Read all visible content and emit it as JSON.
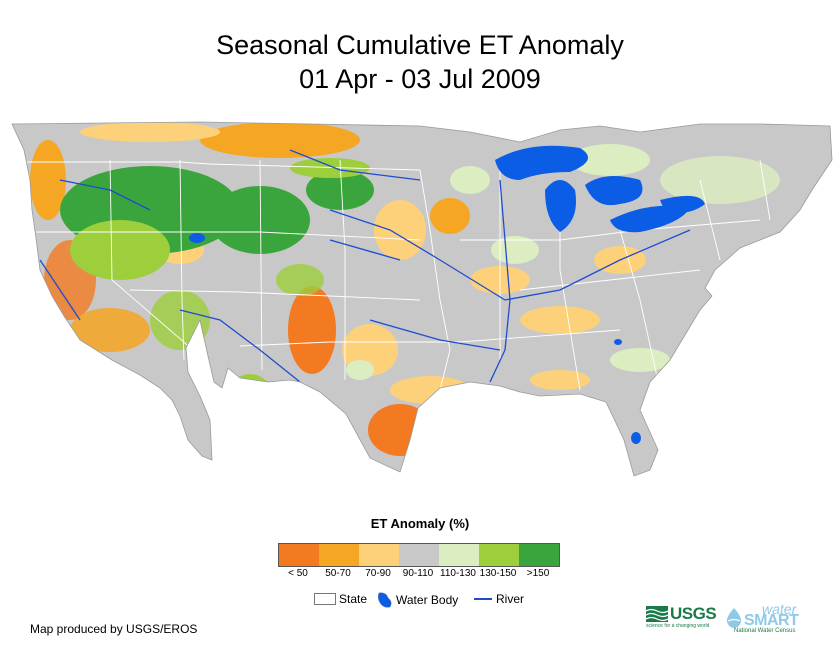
{
  "title_line1": "Seasonal Cumulative ET Anomaly",
  "title_line2": "01 Apr - 03 Jul 2009",
  "legend": {
    "title": "ET Anomaly (%)",
    "classes": [
      {
        "label": "< 50",
        "color": "#f47a22"
      },
      {
        "label": "50-70",
        "color": "#f5a623"
      },
      {
        "label": "70-90",
        "color": "#fdd17a"
      },
      {
        "label": "90-110",
        "color": "#c8c8c8"
      },
      {
        "label": "110-130",
        "color": "#dcedc1"
      },
      {
        "label": "130-150",
        "color": "#9dce3c"
      },
      {
        "label": ">150",
        "color": "#3aa53c"
      }
    ]
  },
  "symbols": {
    "state": "State",
    "water": "Water Body",
    "river": "River"
  },
  "colors": {
    "water": "#0b5de6",
    "state_line": "#ffffff",
    "river": "#1f4ccf"
  },
  "credit": "Map produced by USGS/EROS",
  "logos": {
    "usgs": "USGS",
    "usgs_tagline": "science for a changing world",
    "watersmart_top": "water",
    "watersmart_main": "SMART",
    "watersmart_sub": "National Water Census"
  }
}
